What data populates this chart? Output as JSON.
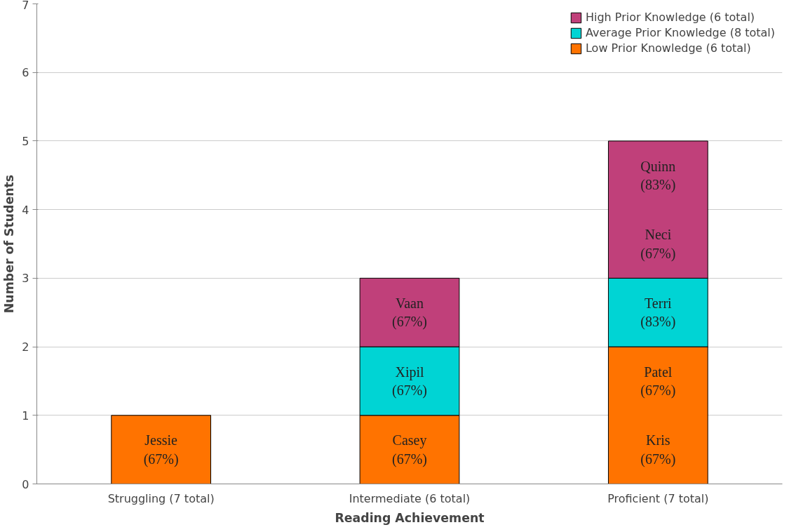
{
  "chart_data": {
    "type": "bar",
    "stacked": true,
    "xlabel": "Reading Achievement",
    "ylabel": "Number of Students",
    "categories": [
      "Struggling (7 total)",
      "Intermediate (6 total)",
      "Proficient (7 total)"
    ],
    "series": [
      {
        "name": "Low Prior Knowledge (6 total)",
        "color": "#ff7300",
        "values": [
          1,
          1,
          2
        ]
      },
      {
        "name": "Average Prior Knowledge (8 total)",
        "color": "#00d4d4",
        "values": [
          0,
          1,
          1
        ]
      },
      {
        "name": "High Prior Knowledge (6 total)",
        "color": "#c0407a",
        "values": [
          0,
          1,
          2
        ]
      }
    ],
    "ylim": [
      0,
      7
    ],
    "yticks": [
      0,
      1,
      2,
      3,
      4,
      5,
      6,
      7
    ],
    "grid": "y",
    "legend": "top right",
    "annotations": [
      "Jessie\n(67%)",
      "Casey\n(67%)",
      "Xipil\n(67%)",
      "Vaan\n(67%)",
      "Kris\n(67%)",
      "Patel\n(67%)",
      "Terri\n(83%)",
      "Neci\n(67%)",
      "Quinn\n(83%)"
    ]
  }
}
